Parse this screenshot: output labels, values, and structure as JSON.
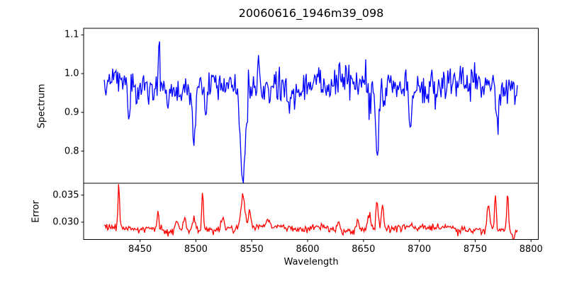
{
  "figure": {
    "title": "20060616_1946m39_098",
    "background": "#ffffff",
    "text_color": "#000000",
    "spine_color": "#000000"
  },
  "chart_data": [
    {
      "type": "line",
      "panel": "top",
      "title": "20060616_1946m39_098",
      "ylabel": "Spectrum",
      "series": [
        {
          "name": "spectrum",
          "color": "#0000ff"
        }
      ],
      "xlim": [
        8399.5,
        8806.5
      ],
      "ylim": [
        0.717,
        1.117
      ],
      "y_ticks": [
        1.1,
        1.0,
        0.9,
        0.8
      ],
      "y_tick_labels": [
        "1.1",
        "1.0",
        "0.9",
        "0.8"
      ],
      "grid": false,
      "x_range": [
        8418,
        8788
      ],
      "x_step": 0.75,
      "baseline": 0.97,
      "noise_sigma": 0.02,
      "seed": 5,
      "wiggles": [
        {
          "amp": 0.008,
          "period": 17,
          "phase": 0.5
        },
        {
          "amp": 0.006,
          "period": 43,
          "phase": 2.1
        }
      ],
      "features": [
        {
          "center": 8440,
          "amp": -0.095,
          "sigma": 1.0
        },
        {
          "center": 8447,
          "amp": -0.045,
          "sigma": 0.8
        },
        {
          "center": 8467,
          "amp": 0.135,
          "sigma": 0.55
        },
        {
          "center": 8475,
          "amp": -0.05,
          "sigma": 0.8
        },
        {
          "center": 8498,
          "amp": -0.135,
          "sigma": 1.3
        },
        {
          "center": 8509,
          "amp": -0.065,
          "sigma": 1.0
        },
        {
          "center": 8542,
          "amp": -0.23,
          "sigma": 2.3
        },
        {
          "center": 8556,
          "amp": 0.08,
          "sigma": 0.6
        },
        {
          "center": 8583,
          "amp": -0.055,
          "sigma": 1.2
        },
        {
          "center": 8655,
          "amp": -0.06,
          "sigma": 0.9
        },
        {
          "center": 8662,
          "amp": -0.195,
          "sigma": 1.5
        },
        {
          "center": 8668,
          "amp": -0.05,
          "sigma": 0.8
        },
        {
          "center": 8692,
          "amp": -0.125,
          "sigma": 1.1
        },
        {
          "center": 8715,
          "amp": -0.05,
          "sigma": 1.0
        },
        {
          "center": 8770,
          "amp": -0.095,
          "sigma": 1.1
        }
      ]
    },
    {
      "type": "line",
      "panel": "bottom",
      "ylabel": "Error",
      "xlabel": "Wavelength",
      "series": [
        {
          "name": "error",
          "color": "#ff0000"
        }
      ],
      "xlim": [
        8399.5,
        8806.5
      ],
      "ylim": [
        0.0268,
        0.0372
      ],
      "y_ticks": [
        0.035,
        0.03
      ],
      "y_tick_labels": [
        "0.035",
        "0.030"
      ],
      "x_ticks": [
        8450,
        8500,
        8550,
        8600,
        8650,
        8700,
        8750,
        8800
      ],
      "x_tick_labels": [
        "8450",
        "8500",
        "8550",
        "8600",
        "8650",
        "8700",
        "8750",
        "8800"
      ],
      "grid": false,
      "x_range": [
        8418,
        8788
      ],
      "x_step": 0.75,
      "baseline": 0.0287,
      "noise_sigma": 0.00038,
      "seed": 9,
      "wiggles": [
        {
          "amp": 0.0004,
          "period": 23,
          "phase": 1.0
        }
      ],
      "features": [
        {
          "center": 8431,
          "amp": 0.0079,
          "sigma": 0.7
        },
        {
          "center": 8466,
          "amp": 0.0038,
          "sigma": 0.8
        },
        {
          "center": 8483,
          "amp": 0.0018,
          "sigma": 1.2
        },
        {
          "center": 8490,
          "amp": 0.0025,
          "sigma": 1.5
        },
        {
          "center": 8498,
          "amp": 0.0023,
          "sigma": 1.2
        },
        {
          "center": 8506,
          "amp": 0.0077,
          "sigma": 0.7
        },
        {
          "center": 8524,
          "amp": 0.0023,
          "sigma": 1.2
        },
        {
          "center": 8542,
          "amp": 0.0058,
          "sigma": 1.8
        },
        {
          "center": 8548,
          "amp": 0.0038,
          "sigma": 1.0
        },
        {
          "center": 8565,
          "amp": 0.0012,
          "sigma": 2.0
        },
        {
          "center": 8612,
          "amp": 0.0009,
          "sigma": 6.0
        },
        {
          "center": 8628,
          "amp": 0.0016,
          "sigma": 1.5
        },
        {
          "center": 8645,
          "amp": 0.0014,
          "sigma": 2.0
        },
        {
          "center": 8655,
          "amp": 0.0028,
          "sigma": 1.5
        },
        {
          "center": 8662,
          "amp": 0.006,
          "sigma": 1.0
        },
        {
          "center": 8667,
          "amp": 0.0044,
          "sigma": 1.0
        },
        {
          "center": 8762,
          "amp": 0.0046,
          "sigma": 1.3
        },
        {
          "center": 8768,
          "amp": 0.007,
          "sigma": 0.8
        },
        {
          "center": 8779,
          "amp": 0.0072,
          "sigma": 0.8
        },
        {
          "center": 8784,
          "amp": -0.0012,
          "sigma": 1.2
        }
      ]
    }
  ]
}
